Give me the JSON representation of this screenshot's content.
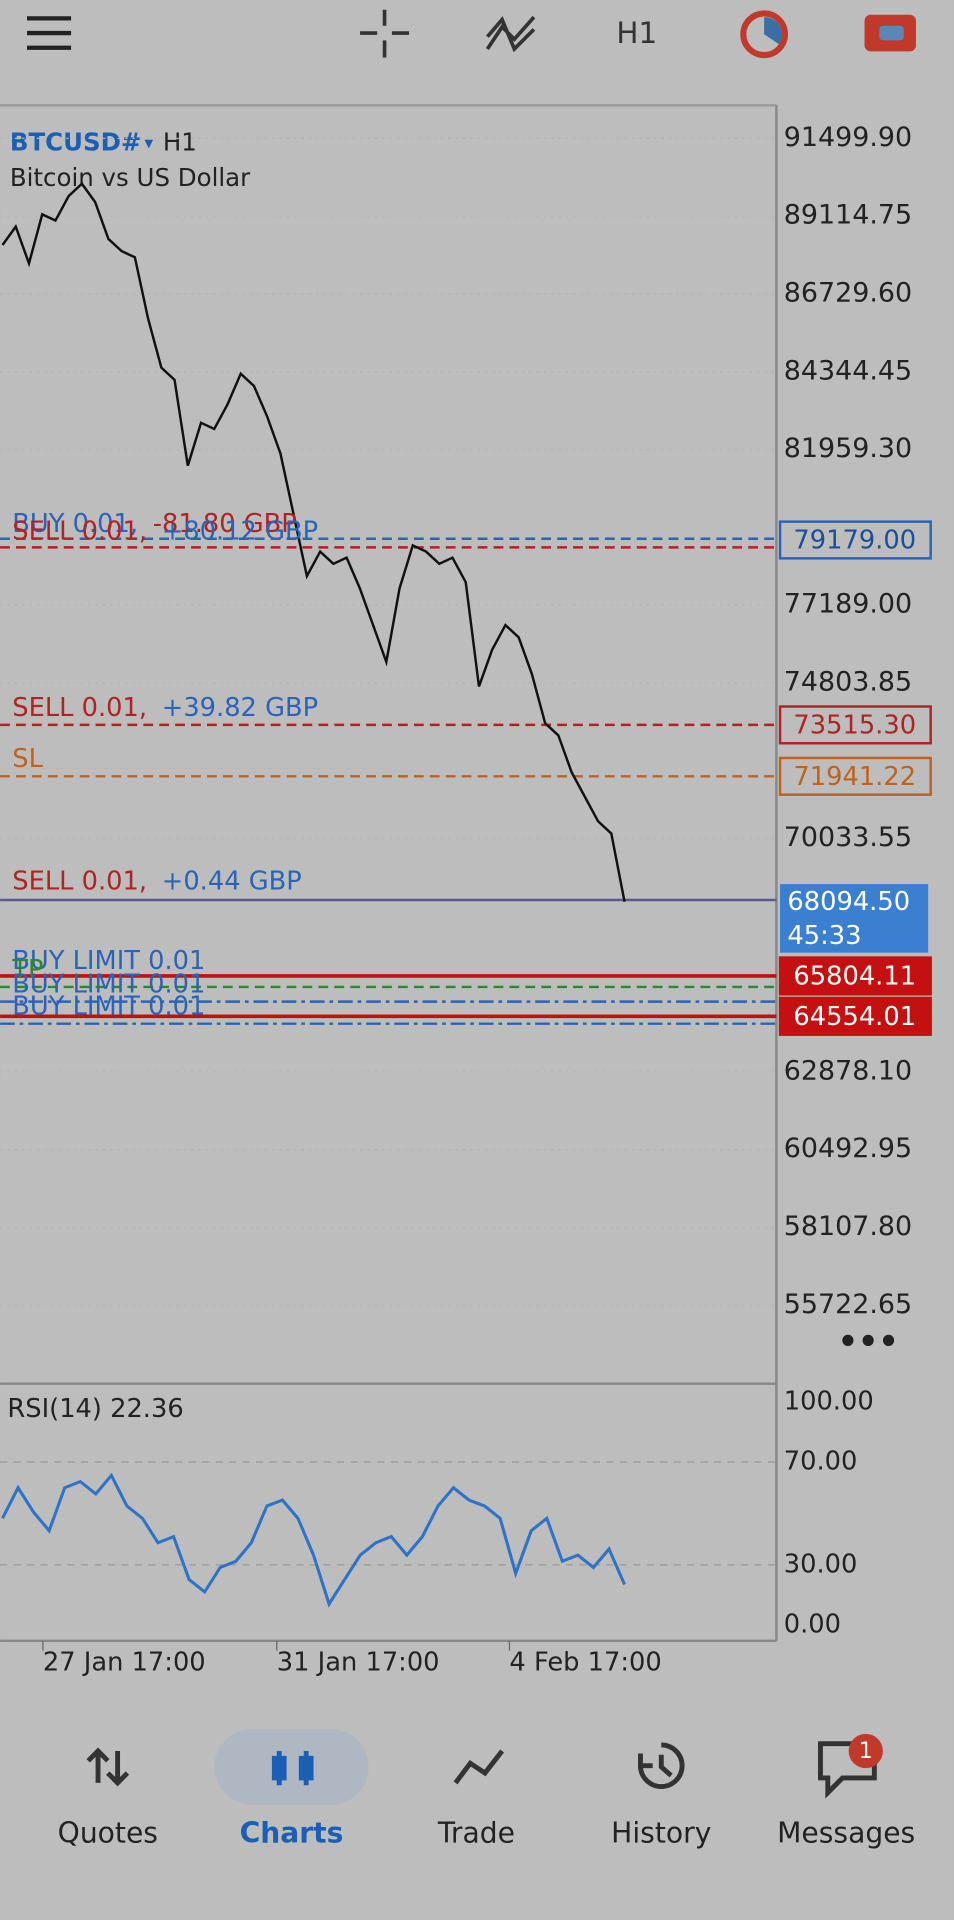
{
  "toolbar": {
    "timeframe": "H1"
  },
  "chart": {
    "symbol": "BTCUSD#",
    "timeframe": "H1",
    "description": "Bitcoin vs US Dollar",
    "price_ticks": [
      "91499.90",
      "89114.75",
      "86729.60",
      "84344.45",
      "81959.30",
      "77189.00",
      "74803.85",
      "70033.55",
      "62878.10",
      "60492.95",
      "58107.80",
      "55722.65"
    ],
    "prices": [
      88230,
      88794,
      87666,
      89169,
      88981,
      89733,
      90109,
      89545,
      88418,
      88042,
      87854,
      85974,
      84471,
      84095,
      81463,
      82779,
      82591,
      83343,
      84283,
      83907,
      82967,
      81839,
      79960,
      78080,
      78832,
      78456,
      78644,
      77704,
      76577,
      75449,
      77704,
      79020,
      78832,
      78456,
      78644,
      77892,
      74697,
      75825,
      76577,
      76201,
      75073,
      73570,
      73194,
      72066,
      71314,
      70562,
      70186,
      68094.5
    ],
    "orders": [
      {
        "text": "BUY 0.01,",
        "profit": "-81.80 GBP"
      },
      {
        "text": "SELL 0.01,",
        "profit": "+80.12 GBP"
      },
      {
        "text": "SELL 0.01,",
        "profit": "+39.82 GBP"
      },
      {
        "text": "SL"
      },
      {
        "text": "SELL 0.01,",
        "profit": "+0.44 GBP"
      },
      {
        "text": "BUY LIMIT 0.01"
      },
      {
        "text": "TP"
      },
      {
        "text": "BUY LIMIT 0.01"
      },
      {
        "text": "BUY LIMIT 0.01"
      }
    ],
    "price_tags": [
      "79179.00",
      "73515.30",
      "71941.22",
      "65804.11",
      "64554.01"
    ],
    "current_price": "68094.50",
    "countdown": "45:33",
    "time_labels": [
      "27 Jan 17:00",
      "31 Jan 17:00",
      "4 Feb 17:00"
    ],
    "rsi": {
      "label": "RSI(14) 22.36",
      "ticks": [
        "100.00",
        "70.00",
        "30.00",
        "0.00"
      ],
      "values": [
        48.1,
        60,
        50.5,
        43.3,
        60,
        62.4,
        57.6,
        64.8,
        52.9,
        48.1,
        38.6,
        41,
        24.3,
        19.5,
        29,
        31.4,
        38.6,
        52.9,
        55.2,
        48.1,
        33.8,
        14.8,
        24.3,
        33.8,
        38.6,
        41,
        33.8,
        41,
        52.9,
        60,
        55.2,
        52.9,
        48.1,
        26.7,
        43.3,
        48.1,
        31.4,
        33.8,
        29,
        36.2,
        22.36
      ]
    }
  },
  "nav": {
    "items": [
      "Quotes",
      "Charts",
      "Trade",
      "History",
      "Messages"
    ],
    "badge": "1"
  }
}
